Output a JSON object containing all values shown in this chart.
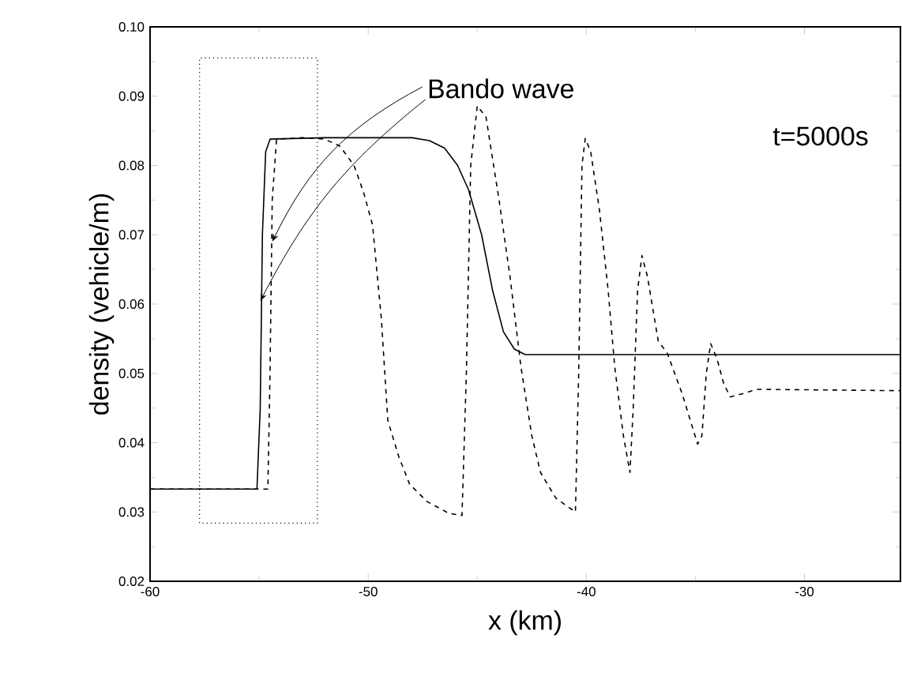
{
  "chart_data": {
    "type": "line",
    "xlabel": "x (km)",
    "ylabel": "density (vehicle/m)",
    "annotations": [
      {
        "text": "Bando wave",
        "x": -54.4,
        "y": 0.069
      },
      "t=5000s"
    ],
    "xlim": [
      -60,
      -25.6
    ],
    "ylim": [
      0.02,
      0.1
    ],
    "xticks": [
      -60,
      -50,
      -40,
      -30
    ],
    "yticks": [
      0.02,
      0.03,
      0.04,
      0.05,
      0.06,
      0.07,
      0.08,
      0.09,
      {
        "value": 0.1,
        "label": "0.10"
      }
    ],
    "series": [
      {
        "color": "#000000",
        "line_style": "solid",
        "x": [
          -60,
          -55.1,
          -54.95,
          -54.85,
          -54.7,
          -54.5,
          -52,
          -48,
          -47.2,
          -46.5,
          -45.9,
          -45.4,
          -44.8,
          -44.3,
          -43.8,
          -43.3,
          -42.8,
          -25.6
        ],
        "values": [
          0.0333,
          0.0333,
          0.045,
          0.07,
          0.082,
          0.0838,
          0.084,
          0.084,
          0.0836,
          0.0825,
          0.08,
          0.0765,
          0.07,
          0.062,
          0.056,
          0.0535,
          0.0527,
          0.0527
        ]
      },
      {
        "color": "#000000",
        "line_style": "dashed",
        "x": [
          -60,
          -54.6,
          -54.5,
          -54.4,
          -54.2,
          -53,
          -52,
          -51.3,
          -50.65,
          -50.2,
          -49.8,
          -49.4,
          -49.1,
          -48.6,
          -48.1,
          -47.3,
          -46.3,
          -45.7,
          -45.5,
          -45.3,
          -45.0,
          -44.6,
          -44.0,
          -43.5,
          -43.0,
          -42.5,
          -42.1,
          -41.4,
          -40.5,
          -40.35,
          -40.2,
          -40.05,
          -39.8,
          -39.4,
          -39.0,
          -38.7,
          -38.3,
          -38.0,
          -37.85,
          -37.65,
          -37.45,
          -37.2,
          -36.7,
          -36.3,
          -35.6,
          -34.9,
          -34.7,
          -34.5,
          -34.3,
          -34.0,
          -33.7,
          -33.4,
          -32.9,
          -32.2,
          -25.6
        ],
        "values": [
          0.0333,
          0.0333,
          0.05,
          0.075,
          0.0838,
          0.084,
          0.0838,
          0.0828,
          0.08,
          0.076,
          0.0714,
          0.058,
          0.0432,
          0.038,
          0.034,
          0.0315,
          0.0298,
          0.0295,
          0.05,
          0.08,
          0.0886,
          0.087,
          0.075,
          0.064,
          0.051,
          0.041,
          0.0357,
          0.032,
          0.03,
          0.05,
          0.08,
          0.0839,
          0.082,
          0.0736,
          0.062,
          0.051,
          0.041,
          0.0357,
          0.045,
          0.062,
          0.067,
          0.064,
          0.0546,
          0.053,
          0.047,
          0.0398,
          0.041,
          0.05,
          0.0543,
          0.052,
          0.0485,
          0.0466,
          0.047,
          0.0477,
          0.0475
        ]
      }
    ]
  }
}
